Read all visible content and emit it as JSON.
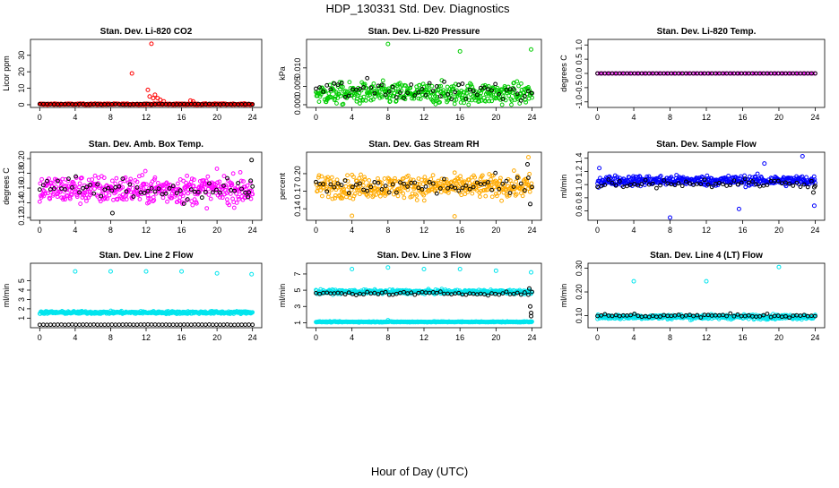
{
  "title": "HDP_130331  Std. Dev. Diagnostics",
  "xlabel": "Hour of Day (UTC)",
  "colors": {
    "black": "#000000"
  },
  "chart_data": [
    {
      "type": "scatter",
      "title": "Stan. Dev. Li-820 CO2",
      "ylabel": "Licor ppm",
      "xlim": [
        0,
        24
      ],
      "ylim": [
        0,
        38
      ],
      "xticks": [
        "0",
        "4",
        "8",
        "12",
        "16",
        "20",
        "24"
      ],
      "yticks": [
        0,
        10,
        20,
        30
      ],
      "ytick_labels": [
        "0",
        "10",
        "20",
        "30"
      ],
      "series": [
        {
          "color": "#ff0000",
          "base": 0.3,
          "noise": 0.4,
          "points": [
            [
              10.4,
              19
            ],
            [
              12.6,
              37
            ],
            [
              12.2,
              9
            ],
            [
              12.4,
              5
            ],
            [
              12.8,
              4
            ],
            [
              13.0,
              6
            ],
            [
              13.3,
              4
            ],
            [
              13.6,
              3
            ],
            [
              14.0,
              2
            ],
            [
              17.0,
              2.5
            ],
            [
              17.3,
              2
            ]
          ]
        },
        {
          "color": "#000000",
          "base": 0.3,
          "noise": 0.2,
          "points": []
        }
      ]
    },
    {
      "type": "scatter",
      "title": "Stan. Dev. Li-820 Pressure",
      "ylabel": "kPa",
      "xlim": [
        0,
        24
      ],
      "ylim": [
        0,
        0.017
      ],
      "xticks": [
        "0",
        "4",
        "8",
        "12",
        "16",
        "20",
        "24"
      ],
      "yticks": [
        0,
        0.005,
        0.01
      ],
      "ytick_labels": [
        "0.000",
        "0.005",
        "0.010"
      ],
      "series": [
        {
          "color": "#00cc00",
          "base": 0.003,
          "noise": 0.003,
          "points": [
            [
              8,
              0.0165
            ],
            [
              16,
              0.0145
            ],
            [
              23.9,
              0.015
            ]
          ]
        },
        {
          "color": "#000000",
          "base": 0.004,
          "noise": 0.003,
          "points": []
        }
      ]
    },
    {
      "type": "scatter",
      "title": "Stan. Dev. Li-820 Temp.",
      "ylabel": "degrees C",
      "xlim": [
        0,
        24
      ],
      "ylim": [
        -1.1,
        1.1
      ],
      "xticks": [
        "0",
        "4",
        "8",
        "12",
        "16",
        "20",
        "24"
      ],
      "yticks": [
        -1.0,
        -0.5,
        0.0,
        0.5,
        1.0
      ],
      "ytick_labels": [
        "-1.0",
        "-0.5",
        "0.0",
        "0.5",
        "1.0"
      ],
      "series": [
        {
          "color": "#ff00ff",
          "base": 0.0,
          "noise": 0.0,
          "points": []
        },
        {
          "color": "#000000",
          "base": 0.0,
          "noise": 0.0,
          "points": []
        }
      ]
    },
    {
      "type": "scatter",
      "title": "Stan. Dev. Amb. Box Temp.",
      "ylabel": "degrees C",
      "xlim": [
        0,
        24
      ],
      "ylim": [
        0.12,
        0.205
      ],
      "xticks": [
        "0",
        "4",
        "8",
        "12",
        "16",
        "20",
        "24"
      ],
      "yticks": [
        0.12,
        0.14,
        0.16,
        0.18,
        0.2
      ],
      "ytick_labels": [
        "0.12",
        "0.14",
        "0.16",
        "0.18",
        "0.20"
      ],
      "series": [
        {
          "color": "#ff00ff",
          "base": 0.158,
          "noise": 0.02,
          "points": []
        },
        {
          "color": "#000000",
          "base": 0.158,
          "noise": 0.018,
          "points": [
            [
              23.9,
              0.198
            ],
            [
              23.8,
              0.17
            ],
            [
              8.2,
              0.126
            ],
            [
              23.5,
              0.148
            ]
          ]
        }
      ]
    },
    {
      "type": "scatter",
      "title": "Stan. Dev. Gas Stream RH",
      "ylabel": "percent",
      "xlim": [
        0,
        24
      ],
      "ylim": [
        0.125,
        0.232
      ],
      "xticks": [
        "0",
        "4",
        "8",
        "12",
        "16",
        "20",
        "24"
      ],
      "yticks": [
        0.14,
        0.17,
        0.2
      ],
      "ytick_labels": [
        "0.14",
        "0.17",
        "0.20"
      ],
      "series": [
        {
          "color": "#ffaa00",
          "base": 0.178,
          "noise": 0.02,
          "points": [
            [
              23.6,
              0.228
            ],
            [
              4.0,
              0.128
            ],
            [
              15.4,
              0.127
            ]
          ]
        },
        {
          "color": "#000000",
          "base": 0.178,
          "noise": 0.017,
          "points": [
            [
              23.5,
              0.216
            ],
            [
              23.8,
              0.148
            ]
          ]
        }
      ]
    },
    {
      "type": "scatter",
      "title": "Stan. Dev. Sample Flow",
      "ylabel": "ml/min",
      "xlim": [
        0,
        24
      ],
      "ylim": [
        0.5,
        1.45
      ],
      "xticks": [
        "0",
        "4",
        "8",
        "12",
        "16",
        "20",
        "24"
      ],
      "yticks": [
        0.6,
        0.8,
        1.0,
        1.2,
        1.4
      ],
      "ytick_labels": [
        "0.6",
        "0.8",
        "1.0",
        "1.2",
        "1.4"
      ],
      "series": [
        {
          "color": "#0000ff",
          "base": 1.06,
          "noise": 0.08,
          "points": [
            [
              8.0,
              0.5
            ],
            [
              15.6,
              0.63
            ],
            [
              22.6,
              1.43
            ],
            [
              23.9,
              0.68
            ],
            [
              18.4,
              1.32
            ],
            [
              0.2,
              1.25
            ]
          ]
        },
        {
          "color": "#000000",
          "base": 1.02,
          "noise": 0.07,
          "points": [
            [
              23.8,
              0.88
            ],
            [
              23.9,
              0.96
            ]
          ]
        }
      ]
    },
    {
      "type": "scatter",
      "title": "Stan. Dev. Line 2 Flow",
      "ylabel": "ml/min",
      "xlim": [
        0,
        24
      ],
      "ylim": [
        0.25,
        6.6
      ],
      "xticks": [
        "0",
        "4",
        "8",
        "12",
        "16",
        "20",
        "24"
      ],
      "yticks": [
        1,
        2,
        3,
        4,
        5
      ],
      "ytick_labels": [
        "1",
        "2",
        "3",
        "4",
        "5"
      ],
      "series": [
        {
          "color": "#00e5ee",
          "base": 1.6,
          "noise": 0.15,
          "points": [
            [
              4,
              6
            ],
            [
              8,
              6
            ],
            [
              12,
              6
            ],
            [
              16,
              6
            ],
            [
              20,
              5.8
            ],
            [
              23.9,
              5.7
            ]
          ]
        },
        {
          "color": "#000000",
          "base": 0.3,
          "noise": 0.02,
          "points": []
        }
      ]
    },
    {
      "type": "scatter",
      "title": "Stan. Dev. Line 3 Flow",
      "ylabel": "ml/min",
      "xlim": [
        0,
        24
      ],
      "ylim": [
        0.7,
        8.0
      ],
      "xticks": [
        "0",
        "4",
        "8",
        "12",
        "16",
        "20",
        "24"
      ],
      "yticks": [
        1,
        3,
        5,
        7
      ],
      "ytick_labels": [
        "1",
        "3",
        "5",
        "7"
      ],
      "series": [
        {
          "color": "#00e5ee",
          "base": 4.8,
          "noise": 0.25,
          "points": [
            [
              4,
              7.6
            ],
            [
              8,
              7.8
            ],
            [
              12,
              7.6
            ],
            [
              16,
              7.6
            ],
            [
              20,
              7.4
            ],
            [
              23.9,
              7.2
            ],
            [
              8,
              1.3
            ]
          ]
        },
        {
          "color": "#00e5ee",
          "base": 1.1,
          "noise": 0.06,
          "points": []
        },
        {
          "color": "#000000",
          "base": 4.6,
          "noise": 0.2,
          "points": [
            [
              23.7,
              5.2
            ],
            [
              23.8,
              3.0
            ],
            [
              23.9,
              1.8
            ],
            [
              23.9,
              2.2
            ]
          ]
        }
      ]
    },
    {
      "type": "scatter",
      "title": "Stan. Dev. Line 4 (LT) Flow",
      "ylabel": "ml/min",
      "xlim": [
        0,
        24
      ],
      "ylim": [
        0.06,
        0.31
      ],
      "xticks": [
        "0",
        "4",
        "8",
        "12",
        "16",
        "20",
        "24"
      ],
      "yticks": [
        0.1,
        0.2,
        0.3
      ],
      "ytick_labels": [
        "0.10",
        "0.20",
        "0.30"
      ],
      "series": [
        {
          "color": "#00e5ee",
          "base": 0.095,
          "noise": 0.01,
          "points": [
            [
              4,
              0.245
            ],
            [
              12,
              0.245
            ],
            [
              20,
              0.305
            ]
          ]
        },
        {
          "color": "#000000",
          "base": 0.1,
          "noise": 0.008,
          "points": []
        }
      ]
    }
  ]
}
